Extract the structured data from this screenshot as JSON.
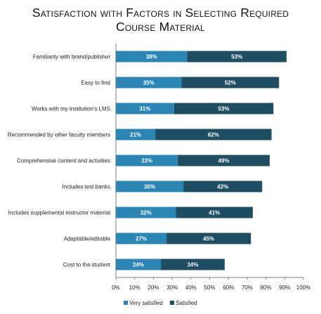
{
  "chart_data": {
    "type": "bar",
    "orientation": "horizontal",
    "stacked": true,
    "title_line1": "Satisfaction with Factors in Selecting Required",
    "title_line2": "Course Material",
    "categories": [
      "Familiarity with brand/publisher",
      "Easy to find",
      "Works with my institution's LMS",
      "Recommended by other faculty members",
      "Comprehensive content and activities",
      "Includes test banks",
      "Includes supplemental instructor material",
      "Adaptable/editable",
      "Cost to the student"
    ],
    "series": [
      {
        "name": "Very satisfied",
        "color": "#2b86b6",
        "values": [
          38,
          35,
          31,
          21,
          33,
          36,
          32,
          27,
          24
        ],
        "labels": [
          "38%",
          "35%",
          "31%",
          "21%",
          "33%",
          "36%",
          "32%",
          "27%",
          "24%"
        ]
      },
      {
        "name": "Satisfied",
        "color": "#1f4e63",
        "values": [
          53,
          52,
          53,
          62,
          49,
          42,
          41,
          45,
          34
        ],
        "labels": [
          "53%",
          "52%",
          "53%",
          "62%",
          "49%",
          "42%",
          "41%",
          "45%",
          "34%"
        ]
      }
    ],
    "xlim": [
      0,
      100
    ],
    "xticks": [
      "0%",
      "10%",
      "20%",
      "30%",
      "40%",
      "50%",
      "60%",
      "70%",
      "80%",
      "90%",
      "100%"
    ],
    "grid": false,
    "legend_position": "bottom"
  }
}
